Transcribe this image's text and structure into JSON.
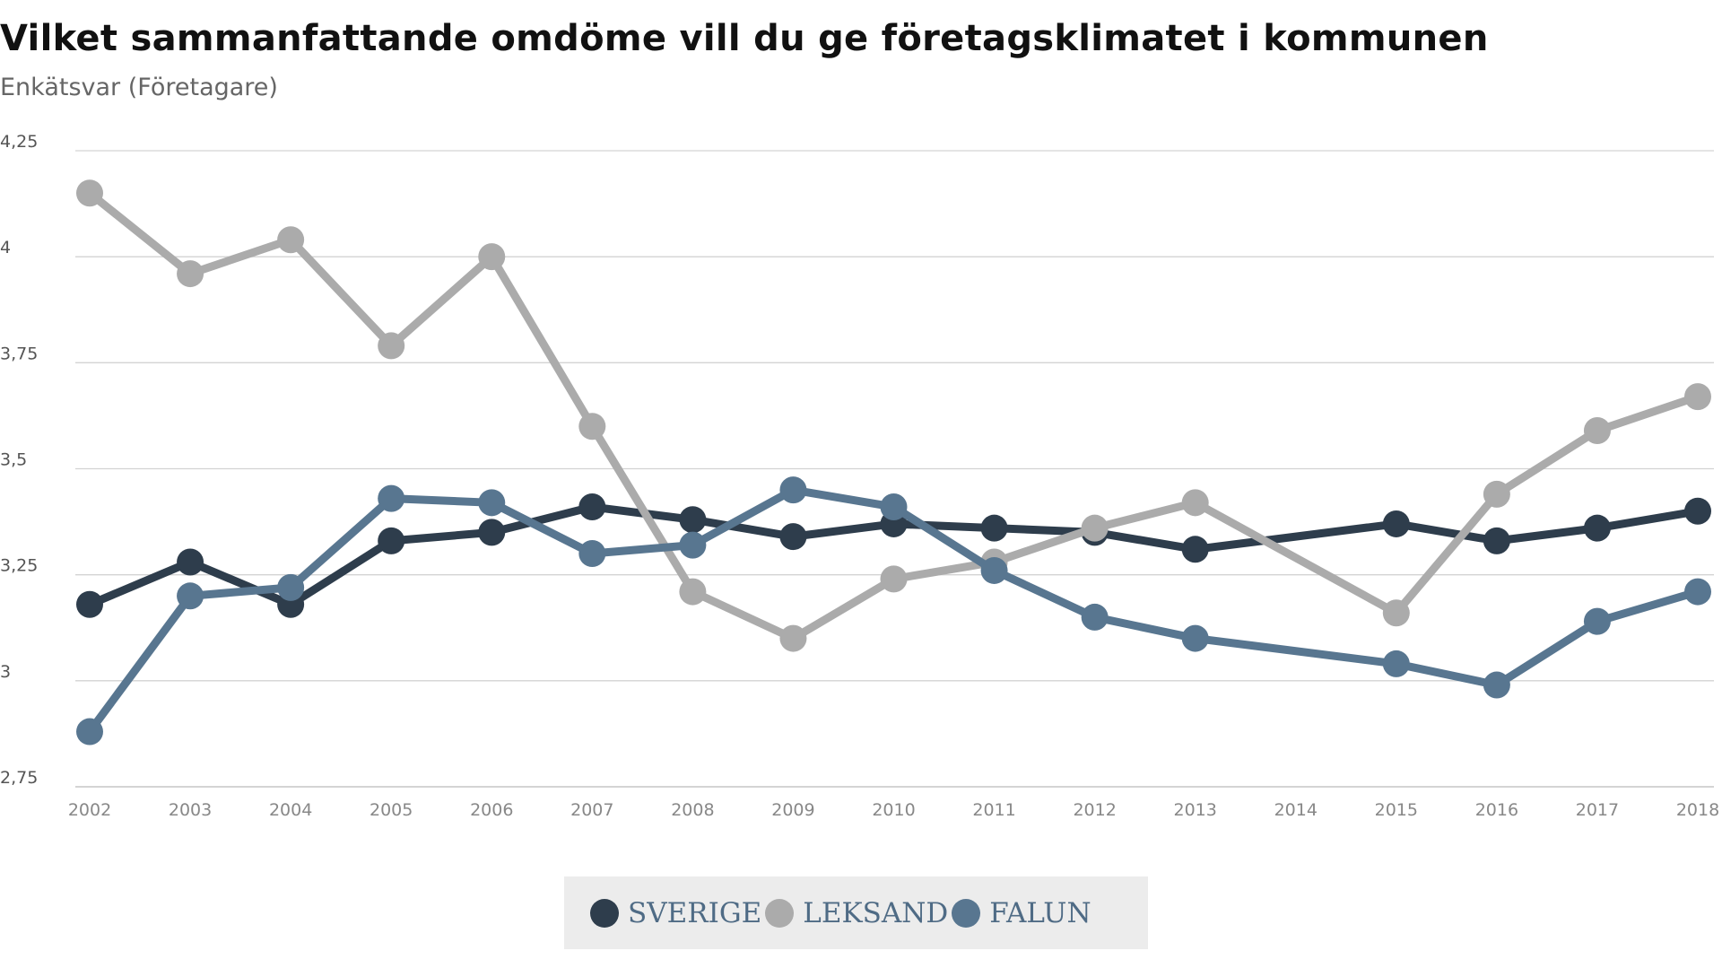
{
  "chart_data": {
    "type": "line",
    "title": "Vilket sammanfattande omdöme vill du ge företagsklimatet i kommunen",
    "subtitle": "Enkätsvar (Företagare)",
    "xlabel": "",
    "ylabel": "",
    "ylim": [
      2.75,
      4.25
    ],
    "yticks": [
      "4,25",
      "4",
      "3,75",
      "3,5",
      "3,25",
      "3",
      "2,75"
    ],
    "ytick_values": [
      4.25,
      4.0,
      3.75,
      3.5,
      3.25,
      3.0,
      2.75
    ],
    "categories": [
      "2002",
      "2003",
      "2004",
      "2005",
      "2006",
      "2007",
      "2008",
      "2009",
      "2010",
      "2011",
      "2012",
      "2013",
      "2014",
      "2015",
      "2016",
      "2017",
      "2018"
    ],
    "grid": true,
    "legend_position": "bottom-center",
    "series": [
      {
        "name": "SVERIGE",
        "color": "#2e3d4c",
        "values": [
          3.18,
          3.28,
          3.18,
          3.33,
          3.35,
          3.41,
          3.38,
          3.34,
          3.37,
          3.36,
          3.35,
          3.31,
          null,
          3.37,
          3.33,
          3.36,
          3.4
        ]
      },
      {
        "name": "LEKSAND",
        "color": "#ababab",
        "values": [
          4.15,
          3.96,
          4.04,
          3.79,
          4.0,
          3.6,
          3.21,
          3.1,
          3.24,
          3.28,
          3.36,
          3.42,
          null,
          3.16,
          3.44,
          3.59,
          3.67
        ]
      },
      {
        "name": "FALUN",
        "color": "#587690",
        "values": [
          2.88,
          3.2,
          3.22,
          3.43,
          3.42,
          3.3,
          3.32,
          3.45,
          3.41,
          3.26,
          3.15,
          3.1,
          null,
          3.04,
          2.99,
          3.14,
          3.21
        ]
      }
    ]
  }
}
